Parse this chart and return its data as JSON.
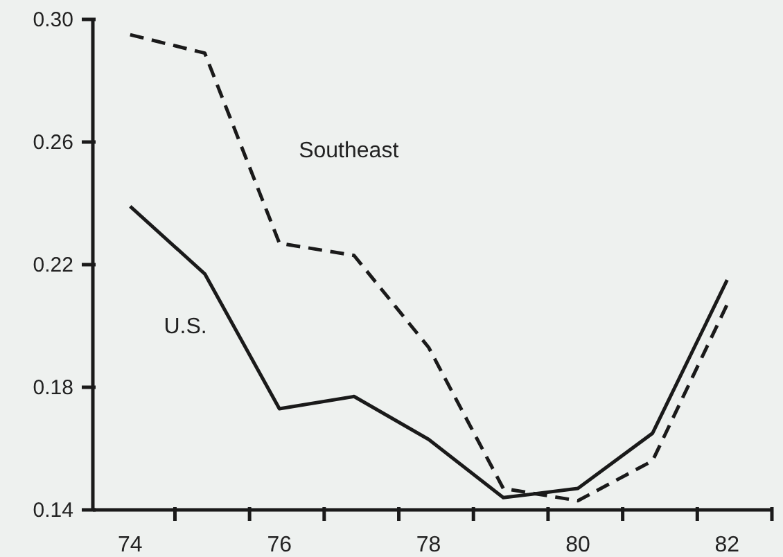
{
  "chart_data": {
    "type": "line",
    "x": [
      74,
      75,
      76,
      77,
      78,
      79,
      80,
      81,
      82
    ],
    "series": [
      {
        "name": "U.S.",
        "color": "#1a1a1a",
        "line_style": "solid",
        "values": [
          0.239,
          0.217,
          0.173,
          0.177,
          0.163,
          0.144,
          0.147,
          0.165,
          0.215
        ]
      },
      {
        "name": "Southeast",
        "color": "#1a1a1a",
        "line_style": "dashed",
        "values": [
          0.295,
          0.289,
          0.227,
          0.223,
          0.193,
          0.147,
          0.143,
          0.156,
          0.207
        ]
      }
    ],
    "xlim": [
      73.5,
      82.6
    ],
    "xticks": [
      74,
      76,
      78,
      80,
      82,
      {
        "value": 74.6,
        "label": null
      },
      {
        "value": 75.6,
        "label": null
      },
      {
        "value": 76.6,
        "label": null
      },
      {
        "value": 77.6,
        "label": null
      },
      {
        "value": 78.6,
        "label": null
      },
      {
        "value": 79.6,
        "label": null
      },
      {
        "value": 80.6,
        "label": null
      },
      {
        "value": 81.6,
        "label": null
      },
      {
        "value": 82.6,
        "label": null
      }
    ],
    "ylim": [
      0.14,
      0.3
    ],
    "yticks": [
      0.14,
      0.18,
      0.22,
      0.26,
      {
        "value": 0.3,
        "label": "0.30"
      }
    ],
    "grid": false,
    "legend": false,
    "marker": "none"
  }
}
